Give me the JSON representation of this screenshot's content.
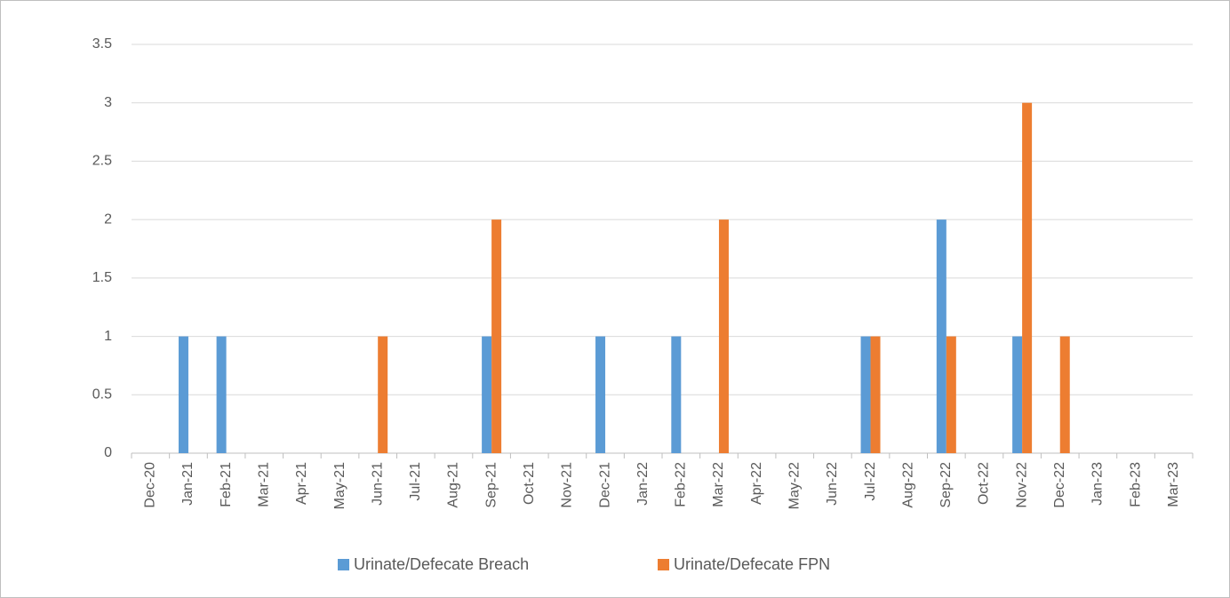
{
  "chart_data": {
    "type": "bar",
    "categories": [
      "Dec-20",
      "Jan-21",
      "Feb-21",
      "Mar-21",
      "Apr-21",
      "May-21",
      "Jun-21",
      "Jul-21",
      "Aug-21",
      "Sep-21",
      "Oct-21",
      "Nov-21",
      "Dec-21",
      "Jan-22",
      "Feb-22",
      "Mar-22",
      "Apr-22",
      "May-22",
      "Jun-22",
      "Jul-22",
      "Aug-22",
      "Sep-22",
      "Oct-22",
      "Nov-22",
      "Dec-22",
      "Jan-23",
      "Feb-23",
      "Mar-23"
    ],
    "series": [
      {
        "name": "Urinate/Defecate Breach",
        "color": "#5b9bd5",
        "values": [
          0,
          1,
          1,
          0,
          0,
          0,
          0,
          0,
          0,
          1,
          0,
          0,
          1,
          0,
          1,
          0,
          0,
          0,
          0,
          1,
          0,
          2,
          0,
          1,
          0,
          0,
          0,
          0
        ]
      },
      {
        "name": "Urinate/Defecate FPN",
        "color": "#ed7d31",
        "values": [
          0,
          0,
          0,
          0,
          0,
          0,
          1,
          0,
          0,
          2,
          0,
          0,
          0,
          0,
          0,
          2,
          0,
          0,
          0,
          1,
          0,
          1,
          0,
          3,
          1,
          0,
          0,
          0
        ]
      }
    ],
    "ylim": [
      0,
      3.5
    ],
    "yticks": [
      0,
      0.5,
      1,
      1.5,
      2,
      2.5,
      3,
      3.5
    ],
    "grid": true,
    "legend": "bottom"
  }
}
